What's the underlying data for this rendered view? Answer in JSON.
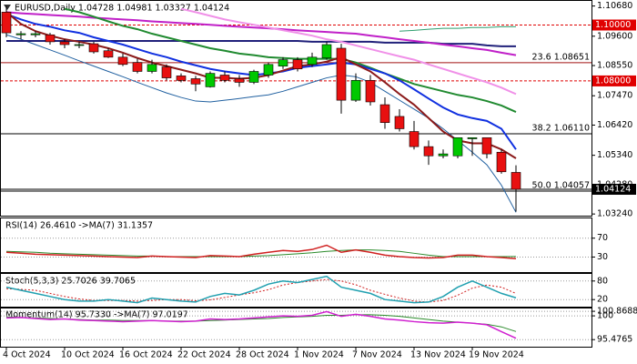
{
  "chart_data": [
    {
      "type": "candlestick",
      "title": "EURUSD,Daily 1.04728 1.04981 1.03327 1.04124",
      "categories": [
        "4 Oct 2024",
        null,
        null,
        null,
        "10 Oct 2024",
        null,
        null,
        null,
        "16 Oct 2024",
        null,
        null,
        null,
        "22 Oct 2024",
        null,
        null,
        null,
        "28 Oct 2024",
        null,
        null,
        null,
        "1 Nov 2024",
        null,
        null,
        null,
        "7 Nov 2024",
        null,
        null,
        null,
        "13 Nov 2024",
        null,
        null,
        null,
        "19 Nov 2024",
        null,
        null,
        null
      ],
      "open": [
        1.1046,
        1.0965,
        1.0965,
        1.0965,
        1.094,
        1.093,
        1.0933,
        1.0908,
        1.0885,
        1.0866,
        1.0834,
        1.085,
        1.0818,
        1.0808,
        1.0779,
        1.0821,
        1.0808,
        1.0795,
        1.0821,
        1.0853,
        1.0876,
        1.0859,
        1.0882,
        1.0917,
        1.0731,
        1.0802,
        1.0715,
        1.0673,
        1.0619,
        1.0565,
        1.0532,
        1.0532,
        1.0593,
        1.0597,
        1.0545,
        1.04728
      ],
      "high": [
        1.1068,
        1.0978,
        1.0978,
        1.0972,
        1.0949,
        1.094,
        1.094,
        1.0917,
        1.0898,
        1.0879,
        1.0876,
        1.0859,
        1.0827,
        1.0818,
        1.0834,
        1.0834,
        1.0821,
        1.084,
        1.0866,
        1.0885,
        1.0885,
        1.0901,
        1.094,
        1.0933,
        1.0827,
        1.0821,
        1.0741,
        1.0699,
        1.0657,
        1.0587,
        1.0555,
        1.0597,
        1.0597,
        1.0597,
        1.0555,
        1.04981
      ],
      "low": [
        1.0956,
        1.0949,
        1.0956,
        1.093,
        1.0917,
        1.0917,
        1.0898,
        1.0882,
        1.0853,
        1.0827,
        1.0827,
        1.0802,
        1.0795,
        1.0763,
        1.0776,
        1.0795,
        1.0779,
        1.0789,
        1.0811,
        1.0843,
        1.0834,
        1.085,
        1.0876,
        1.0683,
        1.0725,
        1.0712,
        1.0629,
        1.0619,
        1.0555,
        1.05,
        1.0523,
        1.0523,
        1.0532,
        1.0523,
        1.0468,
        1.03327
      ],
      "close": [
        1.0972,
        1.0969,
        1.0969,
        1.094,
        1.093,
        1.093,
        1.0904,
        1.0885,
        1.0859,
        1.0834,
        1.0859,
        1.0811,
        1.0802,
        1.0789,
        1.0827,
        1.0802,
        1.0795,
        1.0834,
        1.0859,
        1.0876,
        1.0843,
        1.0885,
        1.093,
        1.0731,
        1.0802,
        1.0725,
        1.0651,
        1.0629,
        1.0565,
        1.0532,
        1.0539,
        1.0597,
        1.0597,
        1.0539,
        1.0475,
        1.04124
      ],
      "up_color": "#00c800",
      "down_color": "#e81010",
      "series": [
        {
          "color": "#2060a0",
          "width": 1,
          "values": [
            1.0965,
            1.0949,
            1.093,
            1.0911,
            1.0892,
            1.0872,
            1.0853,
            1.0834,
            1.0815,
            1.0795,
            1.0776,
            1.0757,
            1.0741,
            1.0728,
            1.0725,
            1.0731,
            1.0737,
            1.0744,
            1.075,
            1.0763,
            1.0779,
            1.0795,
            1.0811,
            1.0821,
            1.0815,
            1.0795,
            1.0763,
            1.0731,
            1.0699,
            1.0667,
            1.0629,
            1.0587,
            1.0545,
            1.05,
            1.0427,
            1.033
          ]
        },
        {
          "color": "#2e9e6e",
          "width": 1,
          "values": [
            null,
            null,
            null,
            null,
            null,
            null,
            null,
            null,
            null,
            null,
            null,
            null,
            null,
            null,
            null,
            null,
            null,
            null,
            null,
            null,
            null,
            null,
            null,
            null,
            null,
            null,
            null,
            1.0978,
            1.0981,
            1.0985,
            1.0988,
            1.0988,
            1.0991,
            1.0991,
            1.0994,
            1.0994
          ]
        },
        {
          "color": "#20207a",
          "width": 2,
          "values": [
            1.0943,
            1.0943,
            1.0943,
            1.0943,
            1.0943,
            1.0943,
            1.0943,
            1.0943,
            1.0943,
            1.0943,
            1.0943,
            1.0943,
            1.0943,
            1.0943,
            1.0943,
            1.0943,
            1.0943,
            1.0943,
            1.0943,
            1.0943,
            1.0943,
            1.094,
            1.094,
            1.094,
            1.094,
            1.094,
            1.0937,
            1.0937,
            1.0937,
            1.0937,
            1.0933,
            1.0933,
            1.0933,
            1.0927,
            1.0924,
            1.0924
          ]
        },
        {
          "color": "#c020c8",
          "width": 2,
          "values": [
            1.1046,
            1.1042,
            1.1039,
            1.1036,
            1.1033,
            1.103,
            1.1026,
            1.1023,
            1.102,
            1.1017,
            1.1013,
            1.101,
            1.1007,
            1.1004,
            1.1001,
            1.0997,
            1.0994,
            1.0991,
            1.0988,
            1.0985,
            1.0981,
            1.0978,
            1.0975,
            1.0972,
            1.0969,
            1.0962,
            1.0956,
            1.0949,
            1.0943,
            1.0937,
            1.093,
            1.0924,
            1.0917,
            1.0911,
            1.0901,
            1.0892
          ]
        },
        {
          "color": "#f090e8",
          "width": 2,
          "values": [
            null,
            null,
            null,
            null,
            null,
            null,
            null,
            null,
            null,
            null,
            null,
            null,
            1.1058,
            1.1046,
            1.1033,
            1.102,
            1.101,
            1.1001,
            1.0991,
            1.0981,
            1.0972,
            1.0962,
            1.0949,
            1.094,
            1.0927,
            1.0914,
            1.0901,
            1.0888,
            1.0876,
            1.0859,
            1.0843,
            1.0827,
            1.0811,
            1.0795,
            1.0776,
            1.0753
          ]
        },
        {
          "color": "#208a30",
          "width": 2,
          "values": [
            null,
            null,
            null,
            null,
            1.1058,
            1.1046,
            1.103,
            1.1013,
            1.0997,
            1.0985,
            1.0969,
            1.0956,
            1.0943,
            1.093,
            1.0917,
            1.0908,
            1.0898,
            1.0892,
            1.0885,
            1.0882,
            1.0879,
            1.0879,
            1.0879,
            1.0879,
            1.0866,
            1.0847,
            1.0827,
            1.0808,
            1.0789,
            1.0776,
            1.0763,
            1.075,
            1.0741,
            1.0728,
            1.0712,
            1.0689
          ]
        },
        {
          "color": "#1030e0",
          "width": 2,
          "values": [
            1.1039,
            1.102,
            1.1004,
            1.0994,
            1.0981,
            1.0972,
            1.0956,
            1.0943,
            1.093,
            1.0914,
            1.0898,
            1.0885,
            1.0869,
            1.0856,
            1.0843,
            1.0834,
            1.0827,
            1.0821,
            1.0827,
            1.0834,
            1.0847,
            1.0853,
            1.0859,
            1.0866,
            1.0859,
            1.0843,
            1.0827,
            1.0802,
            1.077,
            1.0737,
            1.0705,
            1.068,
            1.0667,
            1.0657,
            1.0629,
            1.0555
          ]
        },
        {
          "color": "#8b1a1a",
          "width": 2,
          "values": [
            1.1046,
            1.1004,
            1.0978,
            1.0962,
            1.0949,
            1.094,
            1.093,
            1.0917,
            1.0901,
            1.0882,
            1.0866,
            1.0853,
            1.084,
            1.0827,
            1.0811,
            1.0811,
            1.0808,
            1.0811,
            1.0821,
            1.0837,
            1.0853,
            1.0859,
            1.0869,
            1.0885,
            1.0859,
            1.0834,
            1.0795,
            1.0753,
            1.0715,
            1.0667,
            1.0619,
            1.0587,
            1.0577,
            1.0577,
            1.0555,
            1.0523
          ]
        }
      ],
      "levels": [
        {
          "value": 1.1,
          "label": "1.10000",
          "color": "#e00000",
          "style": "dashed"
        },
        {
          "value": 1.08,
          "label": "1.08000",
          "color": "#e00000",
          "style": "dashed"
        },
        {
          "value": 1.04124,
          "label": "1.04124",
          "color": "#000000",
          "style": "solid"
        }
      ],
      "fibonacci": [
        {
          "value": 1.08651,
          "label": "23.6 1.08651",
          "color": "#a01010"
        },
        {
          "value": 1.0611,
          "label": "38.2 1.06110",
          "color": "#000000"
        },
        {
          "value": 1.04057,
          "label": "50.0 1.04057",
          "color": "#000000"
        }
      ],
      "ylim": [
        1.0318,
        1.1083
      ],
      "yticks": [
        {
          "value": 1.1068,
          "label": "1.10680"
        },
        {
          "value": 1.096,
          "label": "1.09600"
        },
        {
          "value": 1.0855,
          "label": "1.08550"
        },
        {
          "value": 1.0747,
          "label": "1.07470"
        },
        {
          "value": 1.0642,
          "label": "1.06420"
        },
        {
          "value": 1.0534,
          "label": "1.05340"
        },
        {
          "value": 1.0428,
          "label": "1.04280"
        },
        {
          "value": 1.0324,
          "label": "1.03240"
        }
      ],
      "grid": false
    },
    {
      "type": "line",
      "title": "RSI(14) 26.4610 ->MA(7) 31.1357",
      "ylim": [
        0,
        110
      ],
      "yticks": [
        70,
        30
      ],
      "grid": true,
      "series": [
        {
          "color": "#2a8a2a",
          "width": 1,
          "values": [
            42,
            41,
            40,
            38,
            37,
            36,
            35,
            34,
            33,
            32,
            32,
            31,
            31,
            31,
            31,
            31,
            31,
            32,
            33,
            35,
            37,
            39,
            42,
            44,
            45,
            45,
            44,
            42,
            38,
            34,
            31,
            31,
            31,
            31,
            31,
            31.1357
          ]
        },
        {
          "color": "#d02020",
          "width": 1.5,
          "values": [
            40,
            38,
            36,
            35,
            34,
            33,
            32,
            31,
            30,
            29,
            32,
            31,
            30,
            29,
            33,
            32,
            31,
            36,
            40,
            44,
            42,
            46,
            55,
            40,
            45,
            40,
            34,
            31,
            29,
            28,
            29,
            34,
            34,
            31,
            29,
            26.461
          ]
        }
      ]
    },
    {
      "type": "line",
      "title": "Stoch(5,3,3) 25.7026 39.7065",
      "ylim": [
        0,
        100
      ],
      "yticks": [
        80,
        20
      ],
      "grid": true,
      "series": [
        {
          "color": "#d02020",
          "width": 1,
          "style": "dotted",
          "values": [
            55,
            53,
            50,
            40,
            30,
            22,
            17,
            17,
            17,
            15,
            17,
            20,
            20,
            16,
            19,
            27,
            35,
            42,
            52,
            67,
            75,
            80,
            85,
            80,
            68,
            50,
            37,
            25,
            15,
            12,
            17,
            34,
            57,
            67,
            60,
            39.7065
          ]
        },
        {
          "color": "#20a0b0",
          "width": 1.5,
          "values": [
            60,
            50,
            40,
            30,
            20,
            15,
            15,
            20,
            15,
            10,
            25,
            20,
            15,
            12,
            30,
            40,
            35,
            50,
            70,
            80,
            75,
            85,
            95,
            60,
            50,
            40,
            20,
            15,
            10,
            12,
            30,
            60,
            80,
            60,
            40,
            25.7026
          ]
        }
      ]
    },
    {
      "type": "line",
      "title": "Momentum(14) 95.7330 ->MA(7) 97.0197",
      "ylim": [
        94.3,
        101.4
      ],
      "yticks": [
        100.8688,
        100,
        95.4765
      ],
      "grid": true,
      "series": [
        {
          "color": "#2a8a2a",
          "width": 1,
          "values": [
            99.8,
            99.7,
            99.6,
            99.5,
            99.4,
            99.3,
            99.2,
            99.2,
            99.1,
            99.1,
            99.1,
            99.0,
            99.0,
            99.0,
            99.1,
            99.2,
            99.3,
            99.4,
            99.5,
            99.7,
            99.8,
            99.9,
            100.1,
            100.1,
            100.2,
            100.2,
            100.1,
            99.9,
            99.6,
            99.3,
            99.0,
            98.8,
            98.6,
            98.4,
            97.9,
            97.0197
          ]
        },
        {
          "color": "#d020d0",
          "width": 1.5,
          "values": [
            99.6,
            99.7,
            99.5,
            99.3,
            99.4,
            99.2,
            99.1,
            99.0,
            98.9,
            99.0,
            99.1,
            99.0,
            98.9,
            99.0,
            99.4,
            99.3,
            99.4,
            99.6,
            99.8,
            100.0,
            99.9,
            100.1,
            100.8,
            99.9,
            100.3,
            99.9,
            99.4,
            99.2,
            98.9,
            98.7,
            98.6,
            98.8,
            98.6,
            98.3,
            97.0,
            95.733
          ]
        }
      ]
    }
  ]
}
